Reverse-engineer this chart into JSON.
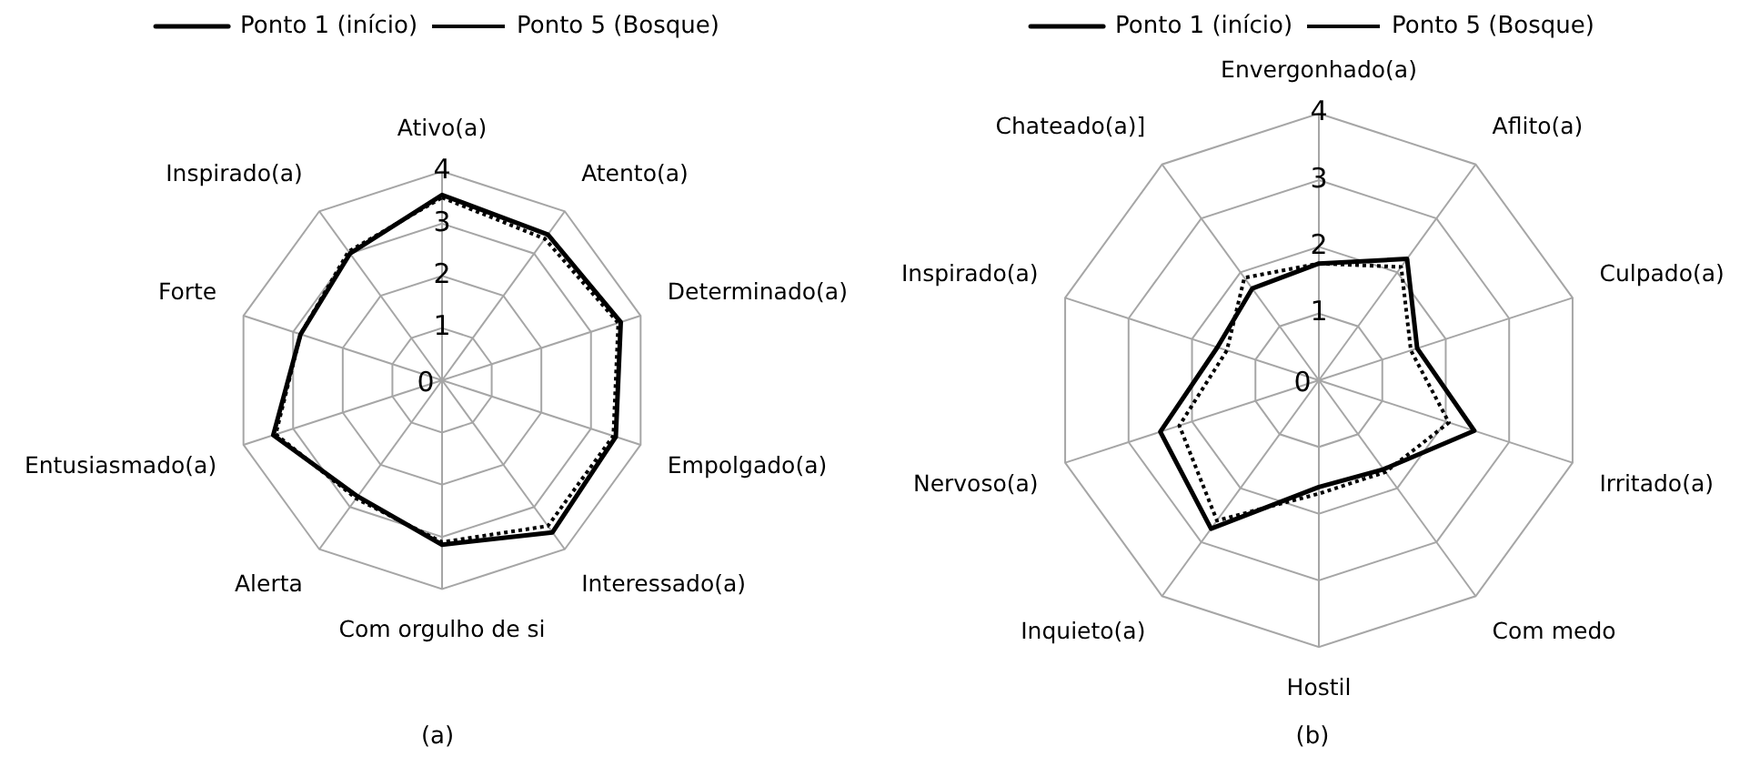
{
  "chart_data": [
    {
      "type": "radar",
      "categories": [
        "Ativo(a)",
        "Atento(a)",
        "Determinado(a)",
        "Empolgado(a)",
        "Interessado(a)",
        "Com orgulho de si",
        "Alerta",
        "Entusiasmado(a)",
        "Forte",
        "Inspirado(a)"
      ],
      "series": [
        {
          "name": "Ponto 1 (início)",
          "color": "#000000",
          "line_style": "solid",
          "values": [
            3.55,
            3.45,
            3.6,
            3.5,
            3.6,
            3.15,
            2.75,
            3.4,
            2.85,
            3.0
          ]
        },
        {
          "name": "Ponto 5 (Bosque)",
          "color": "#000000",
          "line_style": "dotted",
          "values": [
            3.5,
            3.35,
            3.55,
            3.45,
            3.45,
            3.1,
            2.8,
            3.35,
            2.85,
            3.05
          ]
        }
      ],
      "ylim": [
        0,
        4
      ],
      "yticks": [
        0,
        1,
        2,
        3,
        4
      ],
      "grid": true,
      "legend": "top",
      "marker": "none",
      "annotations": [
        "(a)"
      ]
    },
    {
      "type": "radar",
      "categories": [
        "Envergonhado(a)",
        "Aflito(a)",
        "Culpado(a)",
        "Irritado(a)",
        "Com medo",
        "Hostil",
        "Inquieto(a)",
        "Nervoso(a)",
        "Inspirado(a)",
        "Chateado(a)]"
      ],
      "series": [
        {
          "name": "Ponto 1 (início)",
          "color": "#000000",
          "line_style": "solid",
          "values": [
            1.75,
            2.25,
            1.55,
            2.45,
            1.65,
            1.6,
            2.75,
            2.5,
            1.6,
            1.7
          ]
        },
        {
          "name": "Ponto 5 (Bosque)",
          "color": "#000000",
          "line_style": "dotted",
          "values": [
            1.75,
            2.1,
            1.45,
            2.05,
            1.7,
            1.7,
            2.6,
            2.2,
            1.45,
            1.9
          ]
        }
      ],
      "ylim": [
        0,
        4
      ],
      "yticks": [
        0,
        1,
        2,
        3,
        4
      ],
      "grid": true,
      "legend": "top",
      "marker": "none",
      "annotations": [
        "(b)"
      ]
    }
  ]
}
